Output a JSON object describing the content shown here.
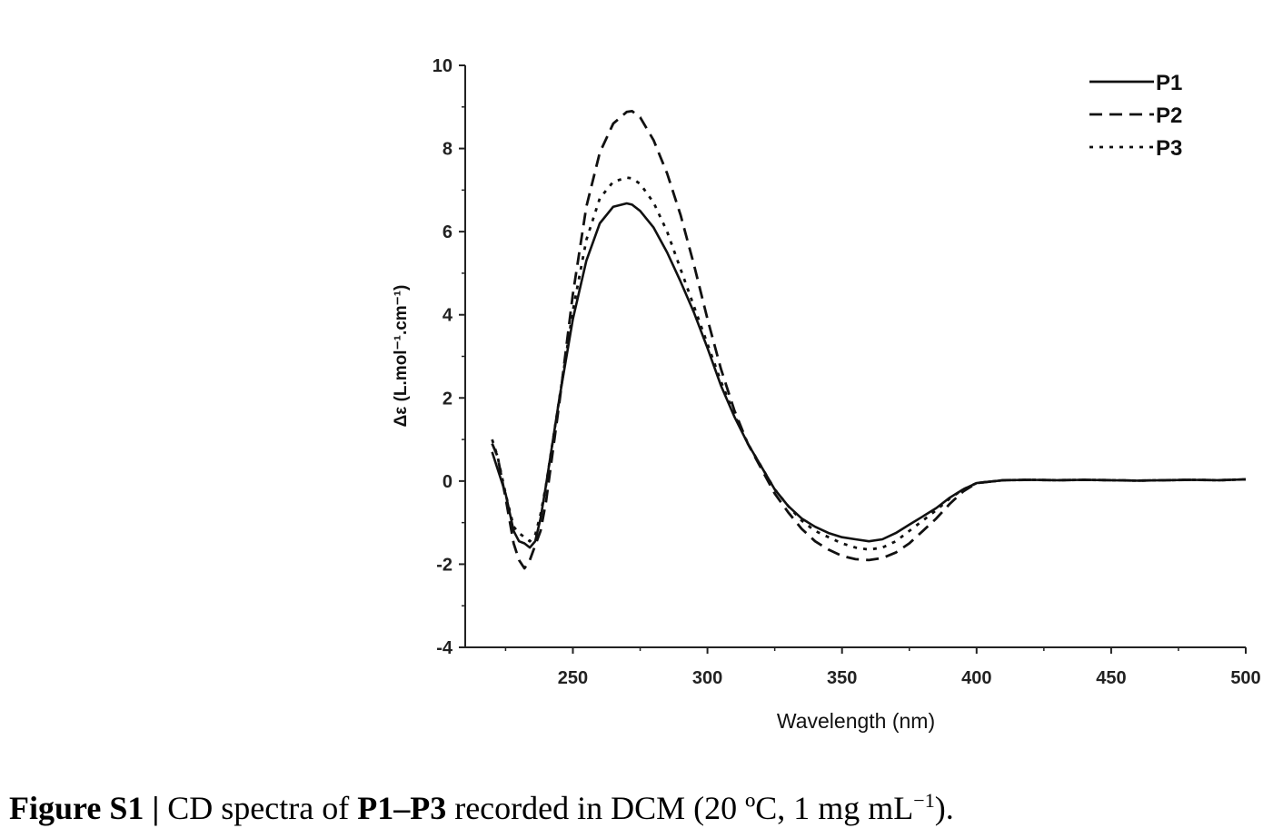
{
  "chart_data": {
    "type": "line",
    "title": "",
    "xlabel": "Wavelength (nm)",
    "ylabel": "Δε (L.mol⁻¹.cm⁻¹)",
    "xlim": [
      210,
      500
    ],
    "ylim": [
      -4,
      10
    ],
    "x_ticks": [
      250,
      300,
      350,
      400,
      450,
      500
    ],
    "y_ticks": [
      -4,
      -2,
      0,
      2,
      4,
      6,
      8,
      10
    ],
    "grid": false,
    "legend_position": "top-right",
    "series": [
      {
        "name": "P1",
        "line_style": "solid",
        "color": "#111111",
        "x": [
          220,
          222,
          225,
          228,
          230,
          232,
          234,
          236,
          238,
          240,
          245,
          250,
          255,
          260,
          265,
          270,
          272,
          275,
          280,
          285,
          290,
          295,
          300,
          305,
          310,
          315,
          320,
          325,
          330,
          335,
          340,
          345,
          350,
          355,
          360,
          365,
          370,
          375,
          380,
          385,
          390,
          395,
          400,
          410,
          420,
          430,
          440,
          450,
          460,
          470,
          480,
          490,
          500
        ],
        "y": [
          0.7,
          0.3,
          -0.3,
          -1.2,
          -1.45,
          -1.5,
          -1.6,
          -1.45,
          -0.9,
          -0.1,
          2.0,
          3.9,
          5.3,
          6.2,
          6.6,
          6.68,
          6.65,
          6.5,
          6.1,
          5.5,
          4.8,
          4.05,
          3.2,
          2.3,
          1.55,
          0.9,
          0.35,
          -0.2,
          -0.6,
          -0.9,
          -1.1,
          -1.25,
          -1.35,
          -1.4,
          -1.45,
          -1.4,
          -1.25,
          -1.05,
          -0.85,
          -0.65,
          -0.4,
          -0.2,
          -0.05,
          0.02,
          0.03,
          0.02,
          0.03,
          0.02,
          0.01,
          0.02,
          0.03,
          0.02,
          0.04
        ]
      },
      {
        "name": "P2",
        "line_style": "dashed",
        "color": "#111111",
        "x": [
          220,
          222,
          225,
          228,
          230,
          232,
          234,
          236,
          238,
          240,
          245,
          250,
          255,
          260,
          265,
          270,
          272,
          275,
          280,
          285,
          290,
          295,
          300,
          305,
          310,
          315,
          320,
          325,
          330,
          335,
          340,
          345,
          350,
          355,
          360,
          365,
          370,
          375,
          380,
          385,
          390,
          395,
          400,
          410,
          420,
          430,
          440,
          450,
          460,
          470,
          480,
          490,
          500
        ],
        "y": [
          0.9,
          0.6,
          -0.4,
          -1.5,
          -1.9,
          -2.1,
          -1.9,
          -1.55,
          -1.2,
          -0.5,
          1.9,
          4.5,
          6.6,
          7.9,
          8.6,
          8.88,
          8.9,
          8.75,
          8.2,
          7.4,
          6.4,
          5.2,
          3.9,
          2.7,
          1.7,
          0.9,
          0.3,
          -0.3,
          -0.75,
          -1.15,
          -1.45,
          -1.65,
          -1.8,
          -1.88,
          -1.9,
          -1.85,
          -1.72,
          -1.5,
          -1.2,
          -0.9,
          -0.55,
          -0.25,
          -0.05,
          0.02,
          0.03,
          0.02,
          0.03,
          0.02,
          0.01,
          0.02,
          0.03,
          0.02,
          0.04
        ]
      },
      {
        "name": "P3",
        "line_style": "dotted",
        "color": "#111111",
        "x": [
          220,
          222,
          225,
          228,
          230,
          232,
          234,
          236,
          238,
          240,
          245,
          250,
          255,
          260,
          265,
          270,
          272,
          275,
          280,
          285,
          290,
          295,
          300,
          305,
          310,
          315,
          320,
          325,
          330,
          335,
          340,
          345,
          350,
          355,
          360,
          365,
          370,
          375,
          380,
          385,
          390,
          395,
          400,
          410,
          420,
          430,
          440,
          450,
          460,
          470,
          480,
          490,
          500
        ],
        "y": [
          1.0,
          0.6,
          -0.3,
          -1.1,
          -1.25,
          -1.35,
          -1.45,
          -1.3,
          -0.8,
          -0.1,
          2.0,
          4.1,
          5.8,
          6.8,
          7.2,
          7.3,
          7.28,
          7.15,
          6.7,
          6.0,
          5.1,
          4.2,
          3.3,
          2.4,
          1.6,
          0.9,
          0.35,
          -0.2,
          -0.6,
          -0.95,
          -1.2,
          -1.35,
          -1.5,
          -1.6,
          -1.65,
          -1.6,
          -1.45,
          -1.2,
          -0.95,
          -0.7,
          -0.42,
          -0.2,
          -0.05,
          0.02,
          0.03,
          0.02,
          0.03,
          0.02,
          0.01,
          0.02,
          0.03,
          0.02,
          0.04
        ]
      }
    ]
  },
  "caption": {
    "label": "Figure S1 |",
    "text_1": " CD spectra of ",
    "compounds": "P1–P3",
    "text_2": " recorded in DCM (20 ºC, 1 mg mL",
    "superscript": "−1",
    "text_3": ")."
  }
}
